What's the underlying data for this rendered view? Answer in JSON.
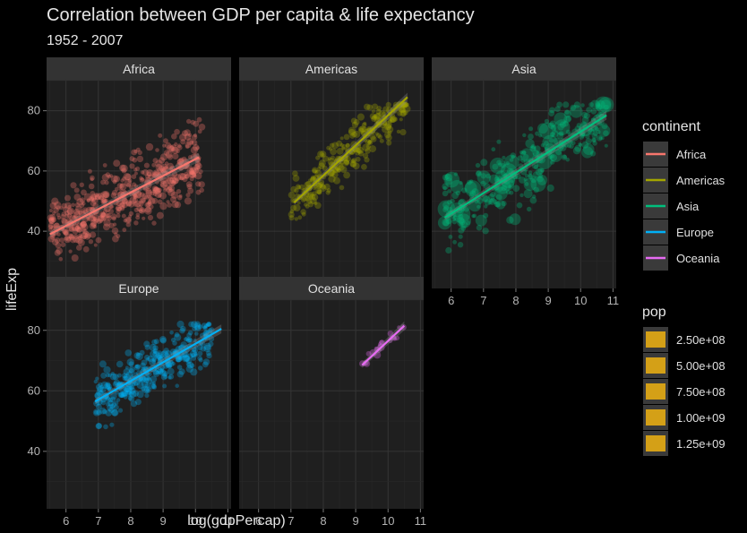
{
  "chart_data": {
    "type": "scatter",
    "title": "Correlation between GDP per capita & life expectancy",
    "subtitle": "1952 - 2007",
    "xlabel": "log(gdpPercap)",
    "ylabel": "lifeExp",
    "xlim": [
      5.4,
      11.1
    ],
    "ylim": [
      21,
      90
    ],
    "x_ticks": [
      6,
      7,
      8,
      9,
      10,
      11
    ],
    "y_ticks": [
      40,
      60,
      80
    ],
    "grid": true,
    "theme": "dark",
    "facets": [
      {
        "name": "Africa",
        "color": "#F8766D",
        "trend": [
          [
            5.5,
            39
          ],
          [
            10.1,
            64.5
          ]
        ],
        "cluster": {
          "x_range": [
            5.5,
            10.2
          ],
          "y_range": [
            25,
            77
          ],
          "n": 520
        }
      },
      {
        "name": "Americas",
        "color": "#A3A500",
        "trend": [
          [
            7.1,
            49.5
          ],
          [
            10.6,
            84.5
          ]
        ],
        "cluster": {
          "x_range": [
            7.0,
            10.6
          ],
          "y_range": [
            40,
            82
          ],
          "n": 280
        }
      },
      {
        "name": "Asia",
        "color": "#00BF7D",
        "trend": [
          [
            5.8,
            44.5
          ],
          [
            10.8,
            78.5
          ]
        ],
        "cluster": {
          "x_range": [
            5.8,
            10.8
          ],
          "y_range": [
            28,
            82
          ],
          "n": 330
        }
      },
      {
        "name": "Europe",
        "color": "#00B0F6",
        "trend": [
          [
            6.9,
            56.5
          ],
          [
            10.8,
            80.5
          ]
        ],
        "cluster": {
          "x_range": [
            6.9,
            10.5
          ],
          "y_range": [
            43,
            82
          ],
          "n": 340
        }
      },
      {
        "name": "Oceania",
        "color": "#E76BF3",
        "trend": [
          [
            9.2,
            68.5
          ],
          [
            10.5,
            81.5
          ]
        ],
        "cluster": {
          "x_range": [
            9.2,
            10.5
          ],
          "y_range": [
            69,
            81
          ],
          "n": 24
        }
      }
    ],
    "legend_position": "right",
    "legend_continent": {
      "title": "continent",
      "entries": [
        "Africa",
        "Americas",
        "Asia",
        "Europe",
        "Oceania"
      ]
    },
    "legend_pop": {
      "title": "pop",
      "entries": [
        "2.50e+08",
        "5.00e+08",
        "7.50e+08",
        "1.00e+09",
        "1.25e+09"
      ],
      "color": "#D4A017"
    }
  }
}
